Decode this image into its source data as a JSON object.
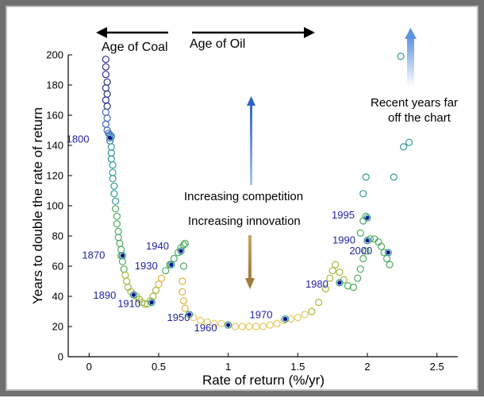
{
  "chart_data": {
    "type": "scatter",
    "title": "",
    "xlabel": "Rate of return (%/yr)",
    "ylabel": "Years to double the rate of return",
    "xlim": [
      -0.15,
      2.65
    ],
    "ylim": [
      0,
      200
    ],
    "x_ticks": [
      0,
      0.5,
      1,
      1.5,
      2,
      2.5
    ],
    "x_tick_labels": [
      "0",
      "0.5",
      "1",
      "1.5",
      "2",
      "2.5"
    ],
    "y_ticks": [
      0,
      20,
      40,
      60,
      80,
      100,
      120,
      140,
      160,
      180,
      200
    ],
    "y_tick_labels": [
      "0",
      "20",
      "40",
      "60",
      "80",
      "100",
      "120",
      "140",
      "160",
      "180",
      "200"
    ],
    "grid": false,
    "marker": "open circle, color graded along the path",
    "colors": {
      "navy": "#2b2b8c",
      "blue": "#3a6ab8",
      "teal": "#2e9a98",
      "green": "#4dab5e",
      "olive": "#a8b83c",
      "gold": "#d9b43c",
      "light_gold": "#e6c860",
      "year_label": "#1f1fa0",
      "year_dot": "#12128f",
      "blue_arrow": "#5b86d4",
      "brown_arrow": "#b38a4a"
    },
    "path_points": [
      [
        0.12,
        197
      ],
      [
        0.12,
        192
      ],
      [
        0.12,
        187
      ],
      [
        0.13,
        182
      ],
      [
        0.12,
        178
      ],
      [
        0.13,
        174
      ],
      [
        0.12,
        170
      ],
      [
        0.13,
        166
      ],
      [
        0.12,
        162
      ],
      [
        0.13,
        158
      ],
      [
        0.12,
        154
      ],
      [
        0.13,
        150
      ],
      [
        0.14,
        148
      ],
      [
        0.15,
        147
      ],
      [
        0.16,
        146
      ],
      [
        0.15,
        143
      ],
      [
        0.16,
        139
      ],
      [
        0.16,
        135
      ],
      [
        0.16,
        131
      ],
      [
        0.17,
        127
      ],
      [
        0.17,
        122
      ],
      [
        0.17,
        118
      ],
      [
        0.18,
        113
      ],
      [
        0.18,
        108
      ],
      [
        0.19,
        103
      ],
      [
        0.19,
        98
      ],
      [
        0.2,
        93
      ],
      [
        0.2,
        88
      ],
      [
        0.21,
        83
      ],
      [
        0.21,
        79
      ],
      [
        0.22,
        75
      ],
      [
        0.23,
        71
      ],
      [
        0.23,
        67
      ],
      [
        0.24,
        63
      ],
      [
        0.25,
        58
      ],
      [
        0.26,
        54
      ],
      [
        0.27,
        50
      ],
      [
        0.28,
        46
      ],
      [
        0.3,
        43
      ],
      [
        0.32,
        41
      ],
      [
        0.34,
        40
      ],
      [
        0.36,
        38
      ],
      [
        0.38,
        36
      ],
      [
        0.4,
        35
      ],
      [
        0.42,
        35
      ],
      [
        0.44,
        37
      ],
      [
        0.46,
        40
      ],
      [
        0.48,
        44
      ],
      [
        0.5,
        48
      ],
      [
        0.52,
        52
      ],
      [
        0.55,
        57
      ],
      [
        0.58,
        61
      ],
      [
        0.61,
        65
      ],
      [
        0.64,
        69
      ],
      [
        0.66,
        72
      ],
      [
        0.68,
        74
      ],
      [
        0.69,
        75
      ],
      [
        0.68,
        60
      ],
      [
        0.67,
        50
      ],
      [
        0.67,
        43
      ],
      [
        0.68,
        37
      ],
      [
        0.69,
        32
      ],
      [
        0.72,
        28
      ],
      [
        0.75,
        26
      ],
      [
        0.8,
        24
      ],
      [
        0.85,
        23
      ],
      [
        0.9,
        22
      ],
      [
        0.95,
        22
      ],
      [
        1.0,
        21
      ],
      [
        1.05,
        20
      ],
      [
        1.1,
        20
      ],
      [
        1.15,
        20
      ],
      [
        1.2,
        20
      ],
      [
        1.25,
        20
      ],
      [
        1.3,
        21
      ],
      [
        1.35,
        22
      ],
      [
        1.4,
        24
      ],
      [
        1.45,
        25
      ],
      [
        1.5,
        26
      ],
      [
        1.55,
        28
      ],
      [
        1.6,
        30
      ],
      [
        1.65,
        36
      ],
      [
        1.7,
        45
      ],
      [
        1.73,
        52
      ],
      [
        1.75,
        57
      ],
      [
        1.77,
        61
      ],
      [
        1.8,
        56
      ],
      [
        1.83,
        51
      ],
      [
        1.86,
        47
      ],
      [
        1.9,
        46
      ],
      [
        1.93,
        52
      ],
      [
        1.95,
        58
      ],
      [
        1.97,
        65
      ],
      [
        1.99,
        70
      ],
      [
        2.0,
        77
      ],
      [
        2.02,
        78
      ],
      [
        2.05,
        78
      ],
      [
        2.08,
        76
      ],
      [
        2.1,
        73
      ],
      [
        2.12,
        69
      ],
      [
        2.14,
        65
      ],
      [
        2.16,
        61
      ],
      [
        1.95,
        82
      ],
      [
        1.97,
        90
      ],
      [
        1.99,
        93
      ],
      [
        1.97,
        108
      ],
      [
        1.99,
        119
      ],
      [
        2.19,
        119
      ],
      [
        2.26,
        139
      ],
      [
        2.3,
        142
      ],
      [
        2.24,
        199
      ]
    ],
    "year_markers": [
      {
        "year": "1800",
        "x": 0.15,
        "y": 145
      },
      {
        "year": "1870",
        "x": 0.24,
        "y": 67
      },
      {
        "year": "1890",
        "x": 0.32,
        "y": 41
      },
      {
        "year": "1910",
        "x": 0.45,
        "y": 36
      },
      {
        "year": "1930",
        "x": 0.59,
        "y": 61
      },
      {
        "year": "1940",
        "x": 0.66,
        "y": 70
      },
      {
        "year": "1950",
        "x": 0.72,
        "y": 28
      },
      {
        "year": "1960",
        "x": 1.0,
        "y": 21
      },
      {
        "year": "1970",
        "x": 1.41,
        "y": 25
      },
      {
        "year": "1980",
        "x": 1.8,
        "y": 49
      },
      {
        "year": "1990",
        "x": 2.0,
        "y": 77
      },
      {
        "year": "1995",
        "x": 2.0,
        "y": 92
      },
      {
        "year": "2000",
        "x": 2.15,
        "y": 69
      }
    ],
    "annotations": {
      "age_of_coal": "Age of Coal",
      "age_of_oil": "Age of Oil",
      "recent_years": [
        "Recent years far",
        "off the chart"
      ],
      "increasing_competition": "Increasing competition",
      "increasing_innovation": "Increasing innovation"
    }
  }
}
